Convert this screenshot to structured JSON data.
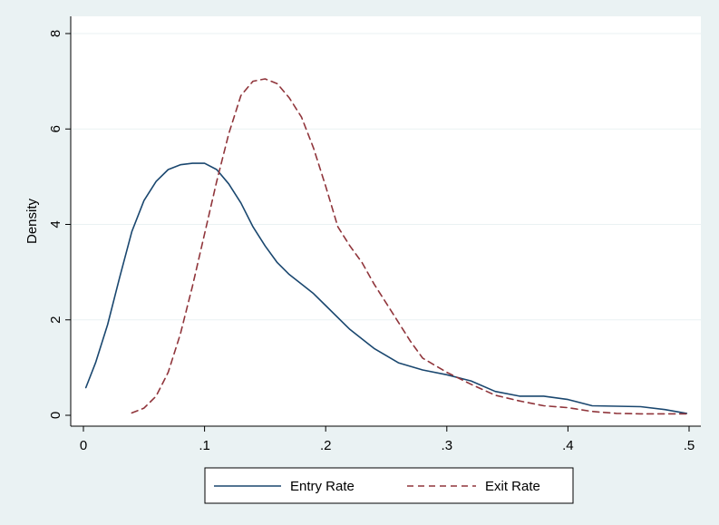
{
  "chart_data": {
    "type": "line",
    "title": "",
    "xlabel": "",
    "ylabel": "Density",
    "xlim": [
      0,
      0.5
    ],
    "ylim": [
      0,
      8
    ],
    "x_ticks": [
      0,
      0.1,
      0.2,
      0.3,
      0.4,
      0.5
    ],
    "x_tick_labels": [
      "0",
      ".1",
      ".2",
      ".3",
      ".4",
      ".5"
    ],
    "y_ticks": [
      0,
      2,
      4,
      6,
      8
    ],
    "y_tick_labels": [
      "0",
      "2",
      "4",
      "6",
      "8"
    ],
    "grid": "horizontal",
    "legend_position": "bottom",
    "colors": {
      "background": "#eaf2f3",
      "plot": "#ffffff",
      "grid": "#eaf2f3"
    },
    "series": [
      {
        "name": "Entry Rate",
        "color": "#1a476f",
        "dash": "solid",
        "x": [
          0.002,
          0.01,
          0.02,
          0.03,
          0.04,
          0.05,
          0.06,
          0.07,
          0.08,
          0.09,
          0.1,
          0.11,
          0.12,
          0.13,
          0.14,
          0.15,
          0.16,
          0.17,
          0.18,
          0.19,
          0.2,
          0.22,
          0.24,
          0.26,
          0.28,
          0.3,
          0.32,
          0.34,
          0.36,
          0.38,
          0.4,
          0.42,
          0.44,
          0.46,
          0.48,
          0.498
        ],
        "y": [
          0.58,
          1.1,
          1.9,
          2.9,
          3.85,
          4.5,
          4.9,
          5.15,
          5.25,
          5.28,
          5.28,
          5.15,
          4.85,
          4.45,
          3.95,
          3.55,
          3.2,
          2.95,
          2.75,
          2.55,
          2.3,
          1.8,
          1.4,
          1.1,
          0.95,
          0.85,
          0.72,
          0.5,
          0.4,
          0.4,
          0.33,
          0.2,
          0.19,
          0.18,
          0.12,
          0.04
        ]
      },
      {
        "name": "Exit Rate",
        "color": "#90353b",
        "dash": "dashed",
        "x": [
          0.04,
          0.05,
          0.06,
          0.07,
          0.08,
          0.09,
          0.1,
          0.11,
          0.12,
          0.13,
          0.14,
          0.15,
          0.16,
          0.17,
          0.18,
          0.19,
          0.2,
          0.21,
          0.22,
          0.23,
          0.24,
          0.25,
          0.26,
          0.27,
          0.28,
          0.3,
          0.32,
          0.34,
          0.36,
          0.38,
          0.4,
          0.42,
          0.44,
          0.46,
          0.48,
          0.5
        ],
        "y": [
          0.05,
          0.15,
          0.4,
          0.9,
          1.7,
          2.7,
          3.8,
          4.9,
          5.9,
          6.7,
          7.0,
          7.05,
          6.95,
          6.65,
          6.25,
          5.6,
          4.8,
          3.95,
          3.55,
          3.2,
          2.75,
          2.35,
          1.95,
          1.55,
          1.2,
          0.9,
          0.65,
          0.42,
          0.3,
          0.2,
          0.16,
          0.08,
          0.04,
          0.03,
          0.03,
          0.03
        ]
      }
    ]
  }
}
